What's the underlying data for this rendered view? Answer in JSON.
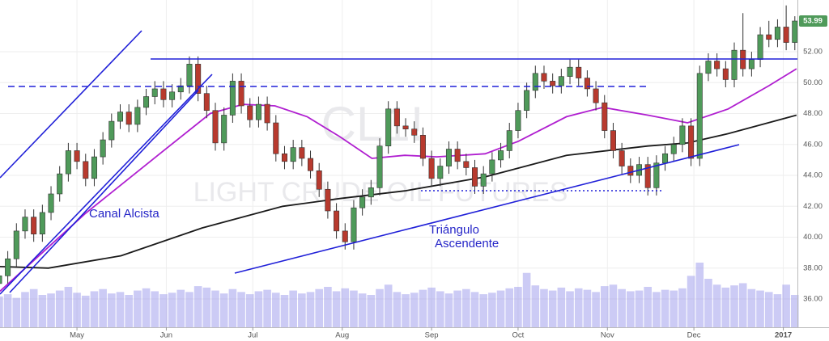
{
  "chart_data": {
    "type": "candlestick",
    "up_color": "#4f9a5a",
    "down_color": "#b83a2e",
    "volume_color": "#8f8ce8",
    "grid": true,
    "xlim": [
      1.1,
      93.3
    ],
    "ylim": [
      34.17,
      55.35
    ],
    "xticks": [
      {
        "value": 10,
        "label": "May"
      },
      {
        "value": 20.33,
        "label": "Jun"
      },
      {
        "value": 30.33,
        "label": "Jul"
      },
      {
        "value": 40.67,
        "label": "Aug"
      },
      {
        "value": 51,
        "label": "Sep"
      },
      {
        "value": 61,
        "label": "Oct"
      },
      {
        "value": 71.33,
        "label": "Nov"
      },
      {
        "value": 81.33,
        "label": "Dec"
      },
      {
        "value": 91.67,
        "label": "2017"
      }
    ],
    "yticks": [
      {
        "value": 36,
        "label": "36.00"
      },
      {
        "value": 38,
        "label": "38.00"
      },
      {
        "value": 40,
        "label": "40.00"
      },
      {
        "value": 42,
        "label": "42.00"
      },
      {
        "value": 44,
        "label": "44.00"
      },
      {
        "value": 46,
        "label": "46.00"
      },
      {
        "value": 48,
        "label": "48.00"
      },
      {
        "value": 50,
        "label": "50.00"
      },
      {
        "value": 52,
        "label": "52.00"
      }
    ],
    "x": [
      1,
      2,
      3,
      4,
      5,
      6,
      7,
      8,
      9,
      10,
      11,
      12,
      13,
      14,
      15,
      16,
      17,
      18,
      19,
      20,
      21,
      22,
      23,
      24,
      25,
      26,
      27,
      28,
      29,
      30,
      31,
      32,
      33,
      34,
      35,
      36,
      37,
      38,
      39,
      40,
      41,
      42,
      43,
      44,
      45,
      46,
      47,
      48,
      49,
      50,
      51,
      52,
      53,
      54,
      55,
      56,
      57,
      58,
      59,
      60,
      61,
      62,
      63,
      64,
      65,
      66,
      67,
      68,
      69,
      70,
      71,
      72,
      73,
      74,
      75,
      76,
      77,
      78,
      79,
      80,
      81,
      82,
      83,
      84,
      85,
      86,
      87,
      88,
      89,
      90,
      91,
      92,
      93
    ],
    "open": [
      37.0,
      37.5,
      38.6,
      40.4,
      41.3,
      40.2,
      41.6,
      42.8,
      44.1,
      45.6,
      44.9,
      43.8,
      45.2,
      46.3,
      47.5,
      48.1,
      47.3,
      48.4,
      49.1,
      49.6,
      48.9,
      49.4,
      49.8,
      51.2,
      49.3,
      48.2,
      46.1,
      47.9,
      50.1,
      48.5,
      47.6,
      48.6,
      47.4,
      45.4,
      44.9,
      45.8,
      45.1,
      44.3,
      43.1,
      41.7,
      40.4,
      39.7,
      41.9,
      42.6,
      43.2,
      45.9,
      48.3,
      47.2,
      47.0,
      46.6,
      45.1,
      43.8,
      44.6,
      45.7,
      44.9,
      44.5,
      43.3,
      44.1,
      45.0,
      45.6,
      46.9,
      48.2,
      49.5,
      50.6,
      50.1,
      49.8,
      50.4,
      51.0,
      50.3,
      49.6,
      48.7,
      46.9,
      45.6,
      44.6,
      44.0,
      44.7,
      43.2,
      44.8,
      45.4,
      46.0,
      47.2,
      45.1,
      50.6,
      51.4,
      50.9,
      50.2,
      52.1,
      50.9,
      51.5,
      53.1,
      52.8,
      53.6,
      52.6
    ],
    "high": [
      38.0,
      39.1,
      40.9,
      41.8,
      41.8,
      42.1,
      43.3,
      44.6,
      46.1,
      46.1,
      45.4,
      45.7,
      46.8,
      48.0,
      48.6,
      48.6,
      48.9,
      49.6,
      50.1,
      50.1,
      49.9,
      50.3,
      51.7,
      51.7,
      49.8,
      48.7,
      48.4,
      50.6,
      50.6,
      49.0,
      49.1,
      49.1,
      47.9,
      45.9,
      46.3,
      46.3,
      45.6,
      44.8,
      43.6,
      42.2,
      40.9,
      42.4,
      43.1,
      43.7,
      46.4,
      48.8,
      48.8,
      47.7,
      47.5,
      47.1,
      45.6,
      45.1,
      46.2,
      46.2,
      45.4,
      45.0,
      44.6,
      45.5,
      46.1,
      47.4,
      48.7,
      50.0,
      51.1,
      51.1,
      50.6,
      50.9,
      51.5,
      51.5,
      50.8,
      50.1,
      49.2,
      47.4,
      46.1,
      45.1,
      45.2,
      45.2,
      45.3,
      45.9,
      46.5,
      47.7,
      47.7,
      51.1,
      51.9,
      51.9,
      51.4,
      52.6,
      54.5,
      52.0,
      53.6,
      54.0,
      54.1,
      55.0,
      54.3
    ],
    "low": [
      36.5,
      37.0,
      38.1,
      39.9,
      39.7,
      39.7,
      41.1,
      42.3,
      43.6,
      44.4,
      43.3,
      43.3,
      44.7,
      45.8,
      47.0,
      46.8,
      46.8,
      47.9,
      48.6,
      48.4,
      48.4,
      48.9,
      49.3,
      48.8,
      47.7,
      45.6,
      45.6,
      47.4,
      48.0,
      47.1,
      47.1,
      46.9,
      44.9,
      44.4,
      44.4,
      44.6,
      43.8,
      42.6,
      41.2,
      39.9,
      39.2,
      39.2,
      41.4,
      42.1,
      42.7,
      45.4,
      46.7,
      46.5,
      46.1,
      44.6,
      43.3,
      43.3,
      44.1,
      44.4,
      44.0,
      42.8,
      42.8,
      43.6,
      44.5,
      45.1,
      46.4,
      47.7,
      49.0,
      49.6,
      49.3,
      49.3,
      49.9,
      49.8,
      49.1,
      48.2,
      46.4,
      45.1,
      44.1,
      43.5,
      43.5,
      42.7,
      42.7,
      44.3,
      44.9,
      45.5,
      44.6,
      44.6,
      50.1,
      50.4,
      49.7,
      49.7,
      50.4,
      50.4,
      51.0,
      52.3,
      52.3,
      52.1,
      52.1
    ],
    "close": [
      37.5,
      38.6,
      40.4,
      41.3,
      40.2,
      41.6,
      42.8,
      44.1,
      45.6,
      44.9,
      43.8,
      45.2,
      46.3,
      47.5,
      48.1,
      47.3,
      48.4,
      49.1,
      49.6,
      48.9,
      49.4,
      49.8,
      51.2,
      49.3,
      48.2,
      46.1,
      47.9,
      50.1,
      48.5,
      47.6,
      48.6,
      47.4,
      45.4,
      44.9,
      45.8,
      45.1,
      44.3,
      43.1,
      41.7,
      40.4,
      39.7,
      41.9,
      42.6,
      43.2,
      45.9,
      48.3,
      47.2,
      47.0,
      46.6,
      45.1,
      43.8,
      44.6,
      45.7,
      44.9,
      44.5,
      43.3,
      44.1,
      45.0,
      45.6,
      46.9,
      48.2,
      49.5,
      50.6,
      50.1,
      49.8,
      50.4,
      51.0,
      50.3,
      49.6,
      48.7,
      46.9,
      45.6,
      44.6,
      44.0,
      44.7,
      43.2,
      44.8,
      45.4,
      46.0,
      47.2,
      45.1,
      50.6,
      51.4,
      50.9,
      50.2,
      52.1,
      50.9,
      51.5,
      53.1,
      52.8,
      53.6,
      52.6,
      53.99
    ],
    "volume": [
      42,
      45,
      40,
      48,
      52,
      44,
      46,
      50,
      55,
      47,
      43,
      49,
      52,
      46,
      48,
      44,
      50,
      53,
      49,
      45,
      47,
      51,
      48,
      56,
      54,
      50,
      46,
      52,
      48,
      45,
      49,
      51,
      47,
      44,
      50,
      46,
      48,
      52,
      55,
      49,
      53,
      50,
      46,
      44,
      52,
      58,
      48,
      45,
      47,
      51,
      54,
      49,
      46,
      50,
      52,
      48,
      45,
      47,
      50,
      53,
      55,
      74,
      57,
      52,
      50,
      54,
      49,
      53,
      51,
      48,
      56,
      58,
      52,
      49,
      50,
      55,
      48,
      51,
      50,
      53,
      70,
      88,
      66,
      58,
      54,
      57,
      60,
      52,
      50,
      48,
      45,
      58,
      44
    ],
    "moving_averages": [
      {
        "color": "#b01fd0",
        "x": [
          1.1,
          10.9,
          19.8,
          25.4,
          29.2,
          32.9,
          36.6,
          40.4,
          44.1,
          47.9,
          51.6,
          57.2,
          61,
          66.6,
          70.8,
          76,
          80.6,
          85.3,
          90,
          93.2
        ],
        "values": [
          36.5,
          41.5,
          45.5,
          48,
          48.6,
          48.5,
          47.8,
          46.5,
          45.1,
          45.3,
          45.2,
          45.4,
          46.2,
          47.8,
          48.4,
          47.9,
          47.4,
          48.3,
          49.8,
          50.9
        ]
      },
      {
        "color": "#1a1a1a",
        "x": [
          1.1,
          6.7,
          15.1,
          24.5,
          33.8,
          40.4,
          47.9,
          57.2,
          66.6,
          76,
          80.6,
          85.3,
          93.2
        ],
        "values": [
          38.1,
          38.0,
          38.8,
          40.6,
          42.0,
          42.5,
          43.0,
          43.9,
          45.3,
          45.9,
          46.1,
          46.7,
          47.9
        ]
      }
    ],
    "annotations": [
      "Canal Alcista",
      "Triángulo",
      "Ascendente"
    ],
    "watermark": [
      "CL1!",
      "LIGHT CRUDE OIL FUTURES"
    ]
  }
}
